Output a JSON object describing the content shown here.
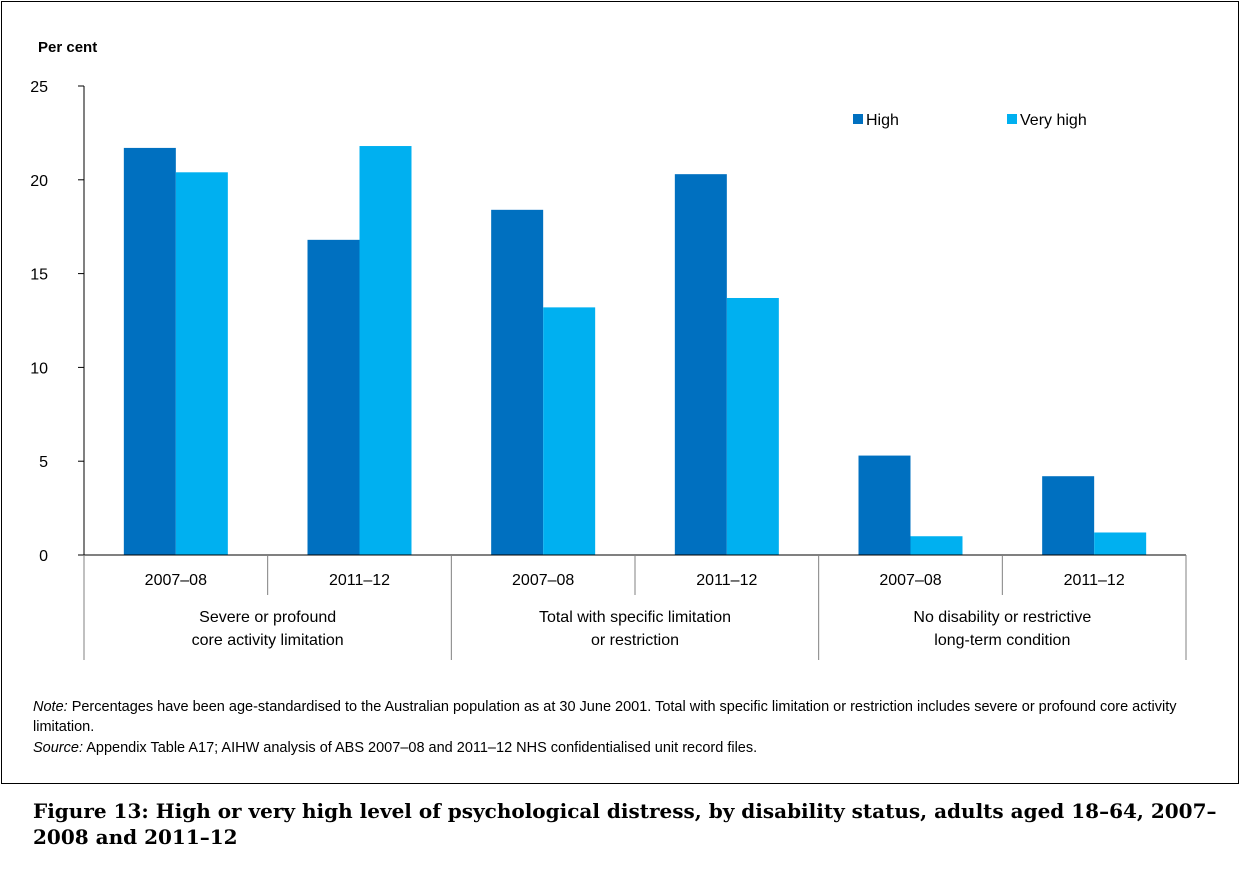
{
  "chart_data": {
    "type": "bar",
    "ylabel": "Per cent",
    "ylim": [
      0,
      25
    ],
    "yticks": [
      0,
      5,
      10,
      15,
      20,
      25
    ],
    "groups": [
      {
        "label": "Severe or profound\ncore activity limitation",
        "years": [
          "2007–08",
          "2011–12"
        ]
      },
      {
        "label": "Total with specific limitation\nor restriction",
        "years": [
          "2007–08",
          "2011–12"
        ]
      },
      {
        "label": "No disability or restrictive\nlong-term condition",
        "years": [
          "2007–08",
          "2011–12"
        ]
      }
    ],
    "categories": [
      "2007–08",
      "2011–12",
      "2007–08",
      "2011–12",
      "2007–08",
      "2011–12"
    ],
    "series": [
      {
        "name": "High",
        "color": "#0070c0",
        "values": [
          21.7,
          16.8,
          18.4,
          20.3,
          5.3,
          4.2
        ]
      },
      {
        "name": "Very high",
        "color": "#00b0f0",
        "values": [
          20.4,
          21.8,
          13.2,
          13.7,
          1.0,
          1.2
        ]
      }
    ],
    "legend": "top-right",
    "grid": false
  },
  "note": {
    "label": "Note:",
    "text": " Percentages have been age-standardised to the Australian population as at 30 June 2001. Total with specific limitation or restriction includes severe or profound core activity limitation."
  },
  "source": {
    "label": "Source:",
    "text": " Appendix Table A17; AIHW analysis of ABS 2007–08 and 2011–12 NHS confidentialised unit record files."
  },
  "caption": "Figure 13: High or very high level of psychological distress, by disability status, adults aged 18–64, 2007–2008 and 2011–12"
}
